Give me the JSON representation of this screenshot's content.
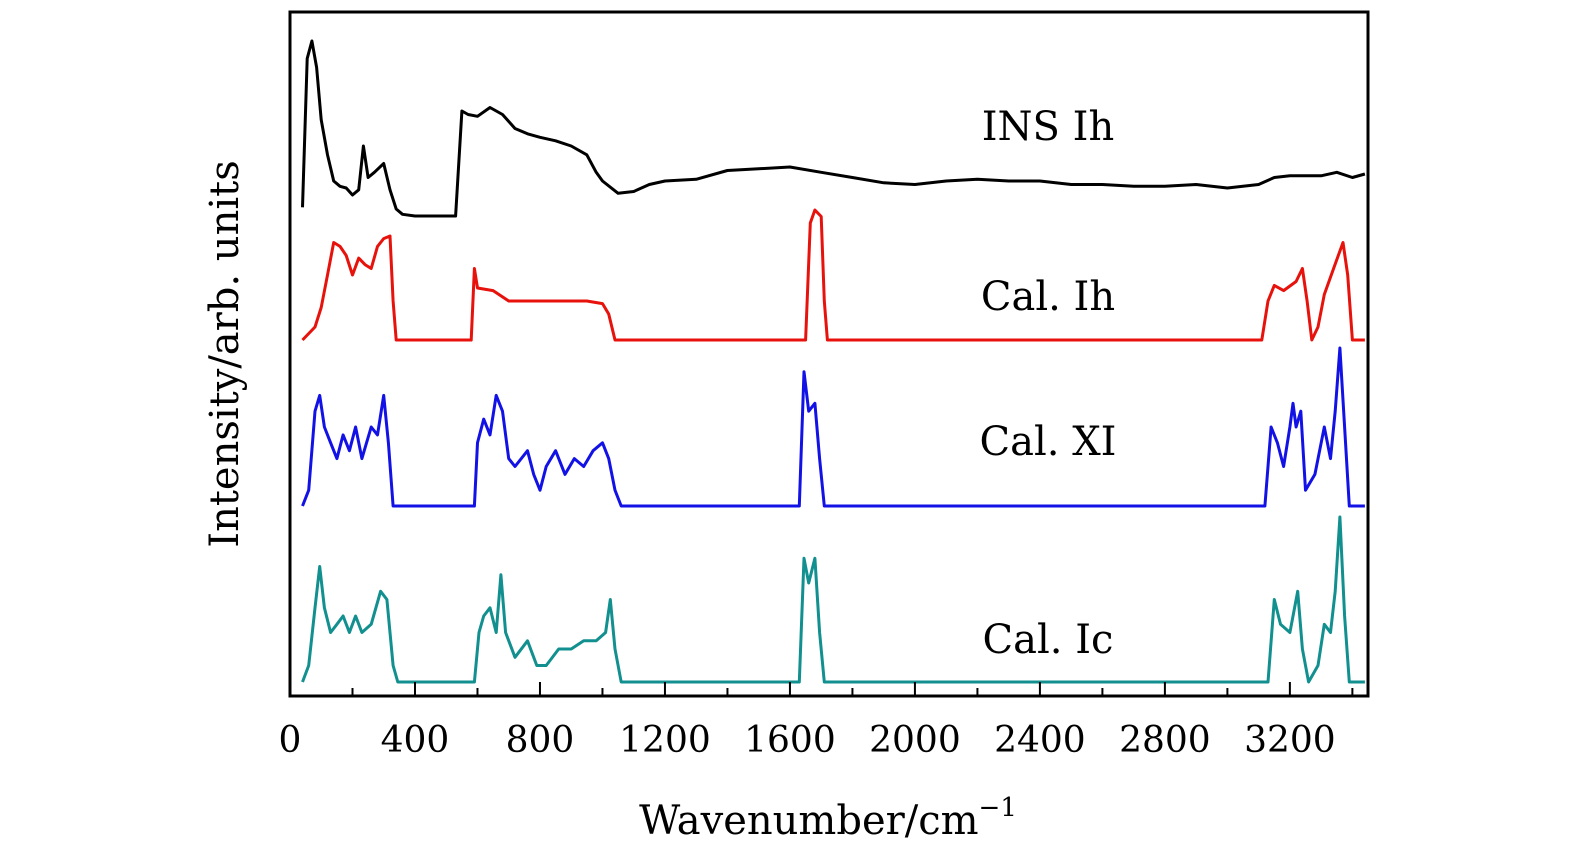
{
  "chart_data": {
    "type": "line",
    "xlabel": "Wavenumber/cm",
    "xlabel_superscript": "−1",
    "ylabel": "Intensity/arb. units",
    "xlim": [
      0,
      3450
    ],
    "x_ticks": [
      "0",
      "400",
      "800",
      "1200",
      "1600",
      "2000",
      "2400",
      "2800",
      "3200"
    ],
    "x_tick_values": [
      0,
      400,
      800,
      1200,
      1600,
      2000,
      2400,
      2800,
      3200
    ],
    "y_ticks_shown": false,
    "grid": false,
    "layout": "vertically offset stacked spectra",
    "series": [
      {
        "name": "INS Ih",
        "color": "#000000",
        "points": [
          [
            40,
            0.05
          ],
          [
            55,
            0.9
          ],
          [
            70,
            1.0
          ],
          [
            85,
            0.85
          ],
          [
            100,
            0.55
          ],
          [
            120,
            0.35
          ],
          [
            140,
            0.2
          ],
          [
            160,
            0.17
          ],
          [
            180,
            0.16
          ],
          [
            200,
            0.12
          ],
          [
            220,
            0.15
          ],
          [
            235,
            0.4
          ],
          [
            250,
            0.22
          ],
          [
            270,
            0.25
          ],
          [
            300,
            0.3
          ],
          [
            320,
            0.15
          ],
          [
            340,
            0.04
          ],
          [
            360,
            0.01
          ],
          [
            400,
            0.0
          ],
          [
            450,
            0.0
          ],
          [
            530,
            0.0
          ],
          [
            550,
            0.6
          ],
          [
            570,
            0.58
          ],
          [
            600,
            0.57
          ],
          [
            640,
            0.62
          ],
          [
            680,
            0.58
          ],
          [
            720,
            0.5
          ],
          [
            760,
            0.47
          ],
          [
            800,
            0.45
          ],
          [
            850,
            0.43
          ],
          [
            900,
            0.4
          ],
          [
            950,
            0.35
          ],
          [
            980,
            0.25
          ],
          [
            1000,
            0.2
          ],
          [
            1050,
            0.13
          ],
          [
            1100,
            0.14
          ],
          [
            1150,
            0.18
          ],
          [
            1200,
            0.2
          ],
          [
            1300,
            0.21
          ],
          [
            1400,
            0.26
          ],
          [
            1500,
            0.27
          ],
          [
            1600,
            0.28
          ],
          [
            1700,
            0.25
          ],
          [
            1800,
            0.22
          ],
          [
            1900,
            0.19
          ],
          [
            2000,
            0.18
          ],
          [
            2100,
            0.2
          ],
          [
            2200,
            0.21
          ],
          [
            2300,
            0.2
          ],
          [
            2400,
            0.2
          ],
          [
            2500,
            0.18
          ],
          [
            2600,
            0.18
          ],
          [
            2700,
            0.17
          ],
          [
            2800,
            0.17
          ],
          [
            2900,
            0.18
          ],
          [
            3000,
            0.16
          ],
          [
            3100,
            0.18
          ],
          [
            3150,
            0.22
          ],
          [
            3200,
            0.23
          ],
          [
            3300,
            0.23
          ],
          [
            3350,
            0.25
          ],
          [
            3400,
            0.22
          ],
          [
            3440,
            0.24
          ]
        ]
      },
      {
        "name": "Cal. Ih",
        "color": "#e8120c",
        "points": [
          [
            40,
            0.0
          ],
          [
            80,
            0.1
          ],
          [
            100,
            0.25
          ],
          [
            120,
            0.5
          ],
          [
            140,
            0.75
          ],
          [
            160,
            0.72
          ],
          [
            180,
            0.65
          ],
          [
            200,
            0.5
          ],
          [
            220,
            0.63
          ],
          [
            240,
            0.58
          ],
          [
            260,
            0.55
          ],
          [
            280,
            0.72
          ],
          [
            300,
            0.78
          ],
          [
            320,
            0.8
          ],
          [
            330,
            0.3
          ],
          [
            340,
            0.0
          ],
          [
            580,
            0.0
          ],
          [
            590,
            0.55
          ],
          [
            600,
            0.4
          ],
          [
            650,
            0.38
          ],
          [
            700,
            0.3
          ],
          [
            750,
            0.3
          ],
          [
            800,
            0.3
          ],
          [
            850,
            0.3
          ],
          [
            900,
            0.3
          ],
          [
            950,
            0.3
          ],
          [
            1000,
            0.28
          ],
          [
            1020,
            0.2
          ],
          [
            1040,
            0.0
          ],
          [
            1650,
            0.0
          ],
          [
            1665,
            0.9
          ],
          [
            1680,
            1.0
          ],
          [
            1700,
            0.95
          ],
          [
            1710,
            0.3
          ],
          [
            1720,
            0.0
          ],
          [
            3110,
            0.0
          ],
          [
            3130,
            0.3
          ],
          [
            3150,
            0.42
          ],
          [
            3180,
            0.38
          ],
          [
            3220,
            0.45
          ],
          [
            3240,
            0.55
          ],
          [
            3255,
            0.3
          ],
          [
            3270,
            0.0
          ],
          [
            3290,
            0.1
          ],
          [
            3310,
            0.35
          ],
          [
            3340,
            0.55
          ],
          [
            3370,
            0.75
          ],
          [
            3385,
            0.5
          ],
          [
            3400,
            0.0
          ],
          [
            3440,
            0.0
          ]
        ]
      },
      {
        "name": "Cal. XI",
        "color": "#1212e6",
        "points": [
          [
            40,
            0.0
          ],
          [
            60,
            0.1
          ],
          [
            80,
            0.6
          ],
          [
            95,
            0.7
          ],
          [
            110,
            0.5
          ],
          [
            130,
            0.4
          ],
          [
            150,
            0.3
          ],
          [
            170,
            0.45
          ],
          [
            190,
            0.35
          ],
          [
            210,
            0.5
          ],
          [
            230,
            0.3
          ],
          [
            260,
            0.5
          ],
          [
            280,
            0.45
          ],
          [
            300,
            0.7
          ],
          [
            315,
            0.4
          ],
          [
            330,
            0.0
          ],
          [
            590,
            0.0
          ],
          [
            600,
            0.4
          ],
          [
            620,
            0.55
          ],
          [
            640,
            0.45
          ],
          [
            660,
            0.7
          ],
          [
            680,
            0.6
          ],
          [
            700,
            0.3
          ],
          [
            720,
            0.25
          ],
          [
            760,
            0.35
          ],
          [
            780,
            0.2
          ],
          [
            800,
            0.1
          ],
          [
            820,
            0.25
          ],
          [
            850,
            0.35
          ],
          [
            880,
            0.2
          ],
          [
            910,
            0.3
          ],
          [
            940,
            0.25
          ],
          [
            970,
            0.35
          ],
          [
            1000,
            0.4
          ],
          [
            1020,
            0.3
          ],
          [
            1040,
            0.1
          ],
          [
            1060,
            0.0
          ],
          [
            1630,
            0.0
          ],
          [
            1645,
            0.85
          ],
          [
            1660,
            0.6
          ],
          [
            1680,
            0.65
          ],
          [
            1695,
            0.3
          ],
          [
            1710,
            0.0
          ],
          [
            3120,
            0.0
          ],
          [
            3140,
            0.5
          ],
          [
            3160,
            0.4
          ],
          [
            3180,
            0.25
          ],
          [
            3200,
            0.5
          ],
          [
            3210,
            0.65
          ],
          [
            3220,
            0.5
          ],
          [
            3235,
            0.6
          ],
          [
            3250,
            0.1
          ],
          [
            3280,
            0.2
          ],
          [
            3310,
            0.5
          ],
          [
            3330,
            0.3
          ],
          [
            3345,
            0.6
          ],
          [
            3360,
            1.0
          ],
          [
            3375,
            0.5
          ],
          [
            3390,
            0.0
          ],
          [
            3440,
            0.0
          ]
        ]
      },
      {
        "name": "Cal. Ic",
        "color": "#128f8f",
        "points": [
          [
            40,
            0.0
          ],
          [
            60,
            0.1
          ],
          [
            80,
            0.45
          ],
          [
            95,
            0.7
          ],
          [
            110,
            0.45
          ],
          [
            130,
            0.3
          ],
          [
            150,
            0.35
          ],
          [
            170,
            0.4
          ],
          [
            190,
            0.3
          ],
          [
            210,
            0.4
          ],
          [
            230,
            0.3
          ],
          [
            260,
            0.35
          ],
          [
            290,
            0.55
          ],
          [
            310,
            0.5
          ],
          [
            330,
            0.1
          ],
          [
            345,
            0.0
          ],
          [
            590,
            0.0
          ],
          [
            605,
            0.3
          ],
          [
            620,
            0.4
          ],
          [
            640,
            0.45
          ],
          [
            660,
            0.3
          ],
          [
            675,
            0.65
          ],
          [
            690,
            0.3
          ],
          [
            720,
            0.15
          ],
          [
            760,
            0.25
          ],
          [
            790,
            0.1
          ],
          [
            820,
            0.1
          ],
          [
            860,
            0.2
          ],
          [
            900,
            0.2
          ],
          [
            940,
            0.25
          ],
          [
            980,
            0.25
          ],
          [
            1010,
            0.3
          ],
          [
            1025,
            0.5
          ],
          [
            1040,
            0.2
          ],
          [
            1060,
            0.0
          ],
          [
            1630,
            0.0
          ],
          [
            1645,
            0.75
          ],
          [
            1660,
            0.6
          ],
          [
            1680,
            0.75
          ],
          [
            1695,
            0.3
          ],
          [
            1710,
            0.0
          ],
          [
            3130,
            0.0
          ],
          [
            3150,
            0.5
          ],
          [
            3170,
            0.35
          ],
          [
            3200,
            0.3
          ],
          [
            3225,
            0.55
          ],
          [
            3240,
            0.2
          ],
          [
            3260,
            0.0
          ],
          [
            3290,
            0.1
          ],
          [
            3310,
            0.35
          ],
          [
            3330,
            0.3
          ],
          [
            3345,
            0.55
          ],
          [
            3360,
            1.0
          ],
          [
            3375,
            0.4
          ],
          [
            3390,
            0.0
          ],
          [
            3440,
            0.0
          ]
        ]
      }
    ]
  }
}
